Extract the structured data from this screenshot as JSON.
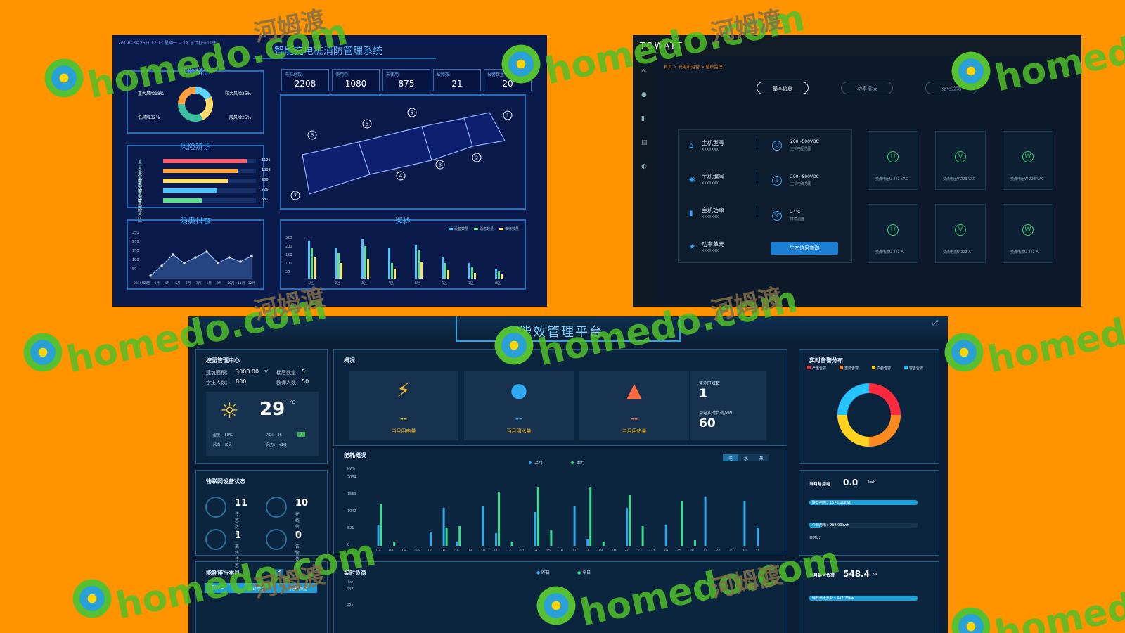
{
  "screen1": {
    "timestamp": "2019年3月25日  12:13  星期一   --  XX 总计打卡11件",
    "title": "智能充电桩消防管理系统",
    "risk1": {
      "title": "风险辨识",
      "labels": [
        "重大风险18%",
        "较大风险25%",
        "低风险32%",
        "一般风险25%"
      ],
      "slices": [
        {
          "value": 18,
          "color": "#5dd6ff"
        },
        {
          "value": 25,
          "color": "#ffd966"
        },
        {
          "value": 32,
          "color": "#3cc0a0"
        },
        {
          "value": 25,
          "color": "#ff9f3d"
        }
      ]
    },
    "risk2": {
      "title": "风险辨识",
      "rows": [
        {
          "label": "重大风险",
          "value": "1121",
          "fill": 0.9,
          "color": "#ff5b6e"
        },
        {
          "label": "重大风险",
          "value": "1008",
          "fill": 0.8,
          "color": "#ffa33a"
        },
        {
          "label": "重大风险",
          "value": "906",
          "fill": 0.7,
          "color": "#ffe066"
        },
        {
          "label": "重大风险",
          "value": "726",
          "fill": 0.58,
          "color": "#4cc6ff"
        },
        {
          "label": "重大风险",
          "value": "531",
          "fill": 0.42,
          "color": "#5ee08c"
        }
      ]
    },
    "hazard": {
      "title": "隐患排查",
      "yticks": [
        "250",
        "200",
        "150",
        "100",
        "50"
      ],
      "xticks": [
        "2019年1月",
        "2月",
        "3月",
        "4月",
        "5月",
        "6月",
        "7月",
        "8月",
        "9月",
        "10月",
        "11月",
        "12月"
      ]
    },
    "kpis": [
      {
        "label": "电桩总数:",
        "value": "2208"
      },
      {
        "label": "使用中:",
        "value": "1080"
      },
      {
        "label": "未使用:",
        "value": "875"
      },
      {
        "label": "故障数:",
        "value": "21"
      },
      {
        "label": "报警数量:",
        "value": "20"
      }
    ],
    "map_markers": [
      "1",
      "2",
      "3",
      "4",
      "5",
      "6",
      "7",
      "8"
    ],
    "patrol": {
      "title": "巡检",
      "legend": [
        "设备数量",
        "隐患数量",
        "维修数量"
      ],
      "yticks": [
        "250",
        "200",
        "150",
        "100",
        "50"
      ],
      "xticks": [
        "1区",
        "2区",
        "3区",
        "4区",
        "5区",
        "6区",
        "7区",
        "8区"
      ]
    }
  },
  "screen2": {
    "logo": "TOWATT",
    "breadcrumb": "首页 > 充电桩运营 > 整桩监控",
    "tabs": [
      "基本信息",
      "功率模块",
      "充电监测"
    ],
    "info": [
      {
        "icon": "home-icon",
        "label": "主机型号",
        "value": "XXXXXXX"
      },
      {
        "icon": "globe-icon",
        "label": "主机编号",
        "value": "XXXXXXX"
      },
      {
        "icon": "battery-icon",
        "label": "主机功率",
        "value": "XXXXXXX"
      },
      {
        "icon": "star-icon",
        "label": "功率单元",
        "value": "XXXXXXX"
      }
    ],
    "specs": [
      {
        "sym": "U",
        "value": "200~500VDC",
        "label": "主机电压范围"
      },
      {
        "sym": "I",
        "value": "200~500VDC",
        "label": "主机电流范围"
      },
      {
        "sym": "℃",
        "value": "24℃",
        "label": "环境温度"
      }
    ],
    "query_button": "生产信息查询",
    "measures": [
      {
        "sym": "U",
        "label": "交流电压U",
        "value": "223 VAC"
      },
      {
        "sym": "V",
        "label": "交流电压V",
        "value": "223 VAC"
      },
      {
        "sym": "W",
        "label": "交流电压W",
        "value": "223 VAC"
      },
      {
        "sym": "U",
        "label": "交流电流U",
        "value": "223 A"
      },
      {
        "sym": "V",
        "label": "交流电流U",
        "value": "223 A"
      },
      {
        "sym": "W",
        "label": "交流电流U",
        "value": "223 A"
      }
    ]
  },
  "screen3": {
    "title": "能效管理平台",
    "campus": {
      "title": "校园管理中心",
      "area_label": "建筑面积：",
      "area_value": "3000.00",
      "area_unit": "m²",
      "floors_label": "楼层数量：",
      "floors_value": "5",
      "students_label": "学生人数：",
      "students_value": "800",
      "teachers_label": "教师人数：",
      "teachers_value": "50",
      "temp": "29",
      "temp_unit": "℃",
      "humidity": "湿度：  58%",
      "aqi": "AQI：  36",
      "aqi_badge": "优",
      "wind_dir": "风向：  东风",
      "wind_force": "风力：  <3级"
    },
    "overview": {
      "title": "概况",
      "items": [
        {
          "icon": "lightning-icon",
          "dash": "--",
          "label": "当月用电量",
          "color": "#f0b323"
        },
        {
          "icon": "water-drop-icon",
          "dash": "--",
          "label": "当月用水量",
          "color": "#2ea8f0"
        },
        {
          "icon": "flame-icon",
          "dash": "--",
          "label": "当月用热量",
          "color": "#ff6a3d"
        }
      ],
      "zone_label": "监测区域数",
      "zone_value": "1",
      "load_label": "用电实时负荷/kW",
      "load_value": "60"
    },
    "energy": {
      "title": "能耗概况",
      "unit": "kWh",
      "tabs": [
        "电",
        "水",
        "热"
      ],
      "legend": [
        "上月",
        "本月"
      ],
      "yticks": [
        "2084",
        "1563",
        "1042",
        "521",
        "0"
      ]
    },
    "alarm": {
      "title": "实时告警分布",
      "legend": [
        "严重告警",
        "重要告警",
        "次要告警",
        "警告告警"
      ],
      "slices": [
        {
          "value": 25,
          "color": "#ff2a3d"
        },
        {
          "value": 25,
          "color": "#ff8a1f"
        },
        {
          "value": 25,
          "color": "#ffd21f"
        },
        {
          "value": 25,
          "color": "#26c4ff"
        }
      ]
    },
    "iot": {
      "title": "物联网设备状态",
      "items": [
        {
          "value": "11",
          "label": "传感数量"
        },
        {
          "value": "10",
          "label": "在线传感"
        },
        {
          "value": "1",
          "label": "离线传感"
        },
        {
          "value": "0",
          "label": "告警传感"
        }
      ]
    },
    "power": {
      "label": "当月总用电",
      "value": "0.0",
      "unit": "kwh",
      "yesterday": "昨日用电：1576.00kwh",
      "today": "今日用电：232.00kwh",
      "ratio": "日环比"
    },
    "rank": {
      "title": "能耗排行本月",
      "cols": [
        "TOP 5",
        "统计项目",
        "能耗用量"
      ]
    },
    "realtime": {
      "title": "实时负荷",
      "unit": "kw",
      "legend": [
        "昨日",
        "今日"
      ],
      "yticks": [
        "447",
        "335"
      ]
    },
    "maxload": {
      "label": "当月最大负荷",
      "value": "548.4",
      "unit": "kw",
      "yesterday": "昨日最大负荷：447.20kw"
    }
  },
  "watermark": {
    "text": "homedo.com",
    "cn": "河姆渡"
  }
}
